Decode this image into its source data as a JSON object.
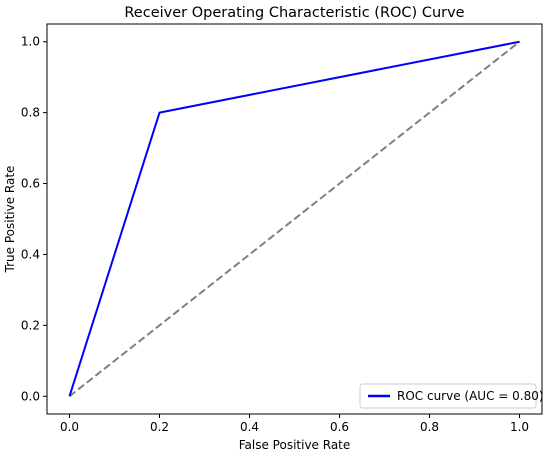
{
  "chart_data": {
    "type": "line",
    "title": "Receiver Operating Characteristic (ROC) Curve",
    "xlabel": "False Positive Rate",
    "ylabel": "True Positive Rate",
    "xlim": [
      -0.05,
      1.05
    ],
    "ylim": [
      -0.05,
      1.05
    ],
    "xticks": [
      0.0,
      0.2,
      0.4,
      0.6,
      0.8,
      1.0
    ],
    "yticks": [
      0.0,
      0.2,
      0.4,
      0.6,
      0.8,
      1.0
    ],
    "xtick_labels": [
      "0.0",
      "0.2",
      "0.4",
      "0.6",
      "0.8",
      "1.0"
    ],
    "ytick_labels": [
      "0.0",
      "0.2",
      "0.4",
      "0.6",
      "0.8",
      "1.0"
    ],
    "grid": false,
    "legend_position": "lower-right",
    "series": [
      {
        "name": "ROC curve (AUC = 0.80)",
        "style": "solid",
        "color": "#0000ff",
        "x": [
          0.0,
          0.2,
          1.0
        ],
        "y": [
          0.0,
          0.8,
          1.0
        ]
      },
      {
        "style": "dashed",
        "color": "#808080",
        "x": [
          0.0,
          1.0
        ],
        "y": [
          0.0,
          1.0
        ]
      }
    ]
  }
}
